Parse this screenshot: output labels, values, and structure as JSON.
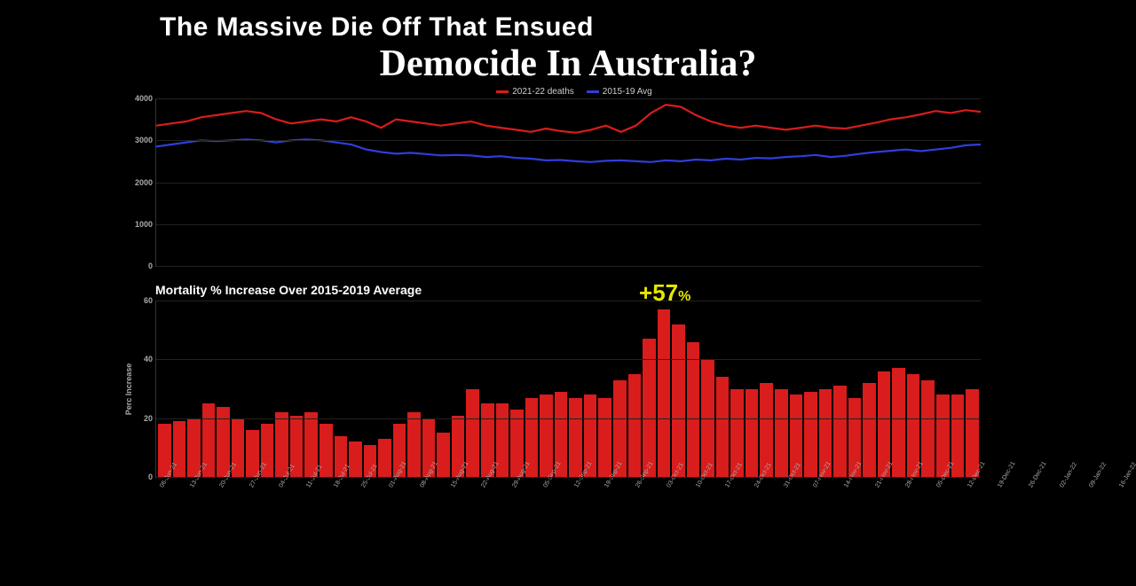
{
  "heading": "The Massive Die Off That Ensued",
  "subheading": "Democide In Australia?",
  "colors": {
    "background": "#000000",
    "text": "#ffffff",
    "axis": "#aaaaaa",
    "grid": "#222222",
    "series_2021": "#d91c1c",
    "series_2015": "#2e3edb",
    "bar": "#d91c1c",
    "annotation": "#e6e600"
  },
  "line_chart": {
    "type": "line",
    "legend": [
      {
        "label": "2021-22 deaths",
        "color": "#d91c1c"
      },
      {
        "label": "2015-19 Avg",
        "color": "#2e3edb"
      }
    ],
    "ylim": [
      0,
      4000
    ],
    "yticks": [
      0,
      1000,
      2000,
      3000,
      4000
    ],
    "series": {
      "s2021": [
        3350,
        3400,
        3450,
        3550,
        3600,
        3650,
        3700,
        3650,
        3500,
        3400,
        3450,
        3500,
        3450,
        3550,
        3450,
        3300,
        3500,
        3450,
        3400,
        3350,
        3400,
        3450,
        3350,
        3300,
        3250,
        3200,
        3280,
        3220,
        3180,
        3250,
        3350,
        3200,
        3350,
        3650,
        3850,
        3800,
        3600,
        3450,
        3350,
        3300,
        3350,
        3300,
        3250,
        3300,
        3350,
        3300,
        3280,
        3350,
        3420,
        3500,
        3550,
        3620,
        3700,
        3650,
        3720,
        3680
      ],
      "s2015": [
        2850,
        2900,
        2950,
        3000,
        2980,
        3000,
        3020,
        3000,
        2950,
        3000,
        3020,
        3000,
        2950,
        2900,
        2780,
        2720,
        2680,
        2700,
        2670,
        2640,
        2650,
        2640,
        2600,
        2620,
        2580,
        2560,
        2520,
        2530,
        2500,
        2480,
        2510,
        2520,
        2500,
        2480,
        2520,
        2500,
        2540,
        2520,
        2560,
        2540,
        2580,
        2570,
        2600,
        2620,
        2650,
        2600,
        2630,
        2680,
        2720,
        2750,
        2780,
        2740,
        2780,
        2820,
        2880,
        2900
      ]
    }
  },
  "bar_chart": {
    "type": "bar",
    "title": "Mortality % Increase Over 2015-2019 Average",
    "yaxis_title": "Perc Increase",
    "ylim": [
      0,
      60
    ],
    "yticks": [
      0,
      20,
      40,
      60
    ],
    "annotation": {
      "text": "+57",
      "suffix": "%",
      "index": 34
    },
    "bar_color": "#d91c1c",
    "categories": [
      "06-Jun-21",
      "13-Jun-21",
      "20-Jun-21",
      "27-Jun-21",
      "04-Jul-21",
      "11-Jul-21",
      "18-Jul-21",
      "25-Jul-21",
      "01-Aug-21",
      "08-Aug-21",
      "15-Aug-21",
      "22-Aug-21",
      "29-Aug-21",
      "05-Sep-21",
      "12-Sep-21",
      "19-Sep-21",
      "26-Sep-21",
      "03-Oct-21",
      "10-Oct-21",
      "17-Oct-21",
      "24-Oct-21",
      "31-Oct-21",
      "07-Nov-21",
      "14-Nov-21",
      "21-Nov-21",
      "28-Nov-21",
      "05-Dec-21",
      "12-Dec-21",
      "19-Dec-21",
      "26-Dec-21",
      "02-Jan-22",
      "09-Jan-22",
      "16-Jan-22",
      "23-Jan-22",
      "30-Jan-22",
      "06-Feb-22",
      "13-Feb-22",
      "20-Feb-22",
      "27-Feb-22",
      "06-Mar-22",
      "13-Mar-22",
      "20-Mar-22",
      "27-Mar-22",
      "03-Apr-22",
      "10-Apr-22",
      "17-Apr-22",
      "24-Apr-22",
      "01-May-22",
      "08-May-22",
      "15-May-22",
      "22-May-22",
      "29-May-22",
      "05-Jun-22",
      "12-Jun-22",
      "19-Jun-22",
      "26-Jun-22"
    ],
    "values": [
      18,
      19,
      20,
      25,
      24,
      20,
      16,
      18,
      22,
      21,
      22,
      18,
      14,
      12,
      11,
      13,
      18,
      22,
      20,
      15,
      21,
      30,
      25,
      25,
      23,
      27,
      28,
      29,
      27,
      28,
      27,
      33,
      35,
      47,
      57,
      52,
      46,
      40,
      34,
      30,
      30,
      32,
      30,
      28,
      29,
      30,
      31,
      27,
      32,
      36,
      37,
      35,
      33,
      28,
      28,
      30
    ]
  }
}
